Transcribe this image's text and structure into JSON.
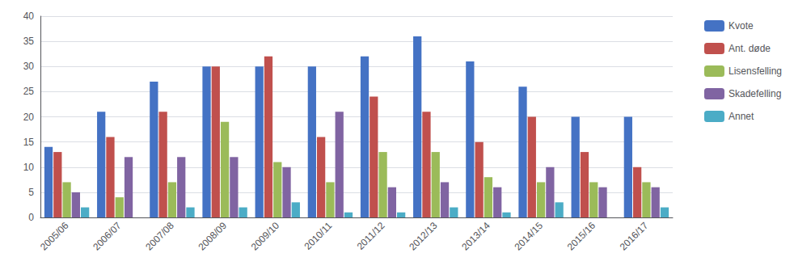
{
  "chart_data": {
    "type": "bar",
    "categories": [
      "2005/06",
      "2006/07",
      "2007/08",
      "2008/09",
      "2009/10",
      "2010/11",
      "2011/12",
      "2012/13",
      "2013/14",
      "2014/15",
      "2015/16",
      "2016/17"
    ],
    "series": [
      {
        "name": "Kvote",
        "color": "#4472C4",
        "values": [
          14,
          21,
          27,
          30,
          30,
          30,
          32,
          36,
          31,
          26,
          20,
          20
        ]
      },
      {
        "name": "Ant. døde",
        "color": "#C0504D",
        "values": [
          13,
          16,
          21,
          30,
          32,
          16,
          24,
          21,
          15,
          20,
          13,
          10
        ]
      },
      {
        "name": "Lisensfelling",
        "color": "#9BBB59",
        "values": [
          7,
          4,
          7,
          19,
          11,
          7,
          13,
          13,
          8,
          7,
          7,
          7
        ]
      },
      {
        "name": "Skadefelling",
        "color": "#8064A2",
        "values": [
          5,
          12,
          12,
          12,
          10,
          21,
          6,
          7,
          6,
          10,
          6,
          6
        ]
      },
      {
        "name": "Annet",
        "color": "#4BACC6",
        "values": [
          2,
          0,
          2,
          2,
          3,
          1,
          1,
          2,
          1,
          3,
          0,
          2
        ]
      }
    ],
    "ylim": [
      0,
      40
    ],
    "yticks": [
      0,
      5,
      10,
      15,
      20,
      25,
      30,
      35,
      40
    ],
    "grid": true,
    "legend": "right"
  }
}
